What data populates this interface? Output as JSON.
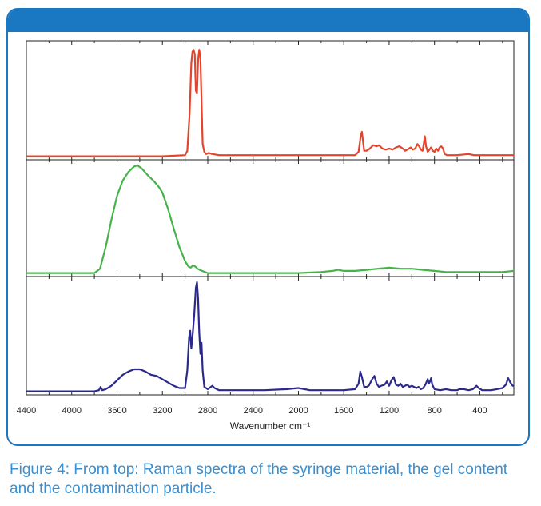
{
  "colors": {
    "frame": "#1a78c2",
    "caption": "#3a8fd1"
  },
  "caption": "Figure 4: From top: Raman spectra of the syringe material, the gel content and the contamination particle.",
  "chart_data": {
    "type": "line",
    "xlabel": "Wavenumber cm⁻¹",
    "xlim": [
      4400,
      100
    ],
    "x_ticks": [
      4400,
      4000,
      3600,
      3200,
      2800,
      2400,
      2000,
      1600,
      1200,
      800,
      400
    ],
    "x_minor_step": 200,
    "ylim": [
      0,
      1
    ],
    "grid": false,
    "panels": [
      {
        "color": "#e2452c",
        "points": [
          [
            4400,
            0.01
          ],
          [
            3200,
            0.01
          ],
          [
            3000,
            0.02
          ],
          [
            2980,
            0.06
          ],
          [
            2960,
            0.4
          ],
          [
            2945,
            0.85
          ],
          [
            2935,
            0.95
          ],
          [
            2925,
            0.97
          ],
          [
            2915,
            0.93
          ],
          [
            2905,
            0.6
          ],
          [
            2895,
            0.58
          ],
          [
            2885,
            0.88
          ],
          [
            2875,
            0.97
          ],
          [
            2865,
            0.9
          ],
          [
            2855,
            0.5
          ],
          [
            2845,
            0.12
          ],
          [
            2830,
            0.05
          ],
          [
            2815,
            0.03
          ],
          [
            2790,
            0.04
          ],
          [
            2760,
            0.03
          ],
          [
            2700,
            0.02
          ],
          [
            2000,
            0.02
          ],
          [
            1500,
            0.02
          ],
          [
            1470,
            0.05
          ],
          [
            1450,
            0.2
          ],
          [
            1440,
            0.23
          ],
          [
            1430,
            0.14
          ],
          [
            1420,
            0.06
          ],
          [
            1400,
            0.06
          ],
          [
            1370,
            0.08
          ],
          [
            1340,
            0.11
          ],
          [
            1310,
            0.1
          ],
          [
            1290,
            0.11
          ],
          [
            1260,
            0.08
          ],
          [
            1230,
            0.07
          ],
          [
            1200,
            0.08
          ],
          [
            1170,
            0.07
          ],
          [
            1140,
            0.09
          ],
          [
            1110,
            0.1
          ],
          [
            1080,
            0.08
          ],
          [
            1060,
            0.06
          ],
          [
            1040,
            0.07
          ],
          [
            1010,
            0.09
          ],
          [
            990,
            0.07
          ],
          [
            970,
            0.08
          ],
          [
            950,
            0.12
          ],
          [
            935,
            0.1
          ],
          [
            920,
            0.07
          ],
          [
            905,
            0.06
          ],
          [
            895,
            0.12
          ],
          [
            885,
            0.19
          ],
          [
            875,
            0.1
          ],
          [
            860,
            0.05
          ],
          [
            845,
            0.07
          ],
          [
            830,
            0.09
          ],
          [
            815,
            0.06
          ],
          [
            800,
            0.05
          ],
          [
            785,
            0.08
          ],
          [
            770,
            0.06
          ],
          [
            755,
            0.09
          ],
          [
            740,
            0.1
          ],
          [
            725,
            0.08
          ],
          [
            710,
            0.03
          ],
          [
            690,
            0.02
          ],
          [
            600,
            0.02
          ],
          [
            500,
            0.03
          ],
          [
            450,
            0.02
          ],
          [
            300,
            0.02
          ],
          [
            100,
            0.02
          ]
        ]
      },
      {
        "color": "#46b24a",
        "points": [
          [
            4400,
            0.01
          ],
          [
            3800,
            0.01
          ],
          [
            3750,
            0.05
          ],
          [
            3700,
            0.25
          ],
          [
            3650,
            0.5
          ],
          [
            3600,
            0.72
          ],
          [
            3550,
            0.86
          ],
          [
            3500,
            0.94
          ],
          [
            3450,
            0.99
          ],
          [
            3420,
            1.0
          ],
          [
            3380,
            0.97
          ],
          [
            3330,
            0.91
          ],
          [
            3280,
            0.86
          ],
          [
            3230,
            0.8
          ],
          [
            3200,
            0.75
          ],
          [
            3150,
            0.6
          ],
          [
            3100,
            0.42
          ],
          [
            3050,
            0.25
          ],
          [
            3000,
            0.12
          ],
          [
            2970,
            0.07
          ],
          [
            2950,
            0.06
          ],
          [
            2930,
            0.08
          ],
          [
            2910,
            0.07
          ],
          [
            2890,
            0.05
          ],
          [
            2870,
            0.04
          ],
          [
            2850,
            0.03
          ],
          [
            2800,
            0.01
          ],
          [
            2400,
            0.01
          ],
          [
            2000,
            0.01
          ],
          [
            1800,
            0.02
          ],
          [
            1700,
            0.03
          ],
          [
            1650,
            0.04
          ],
          [
            1600,
            0.03
          ],
          [
            1500,
            0.03
          ],
          [
            1400,
            0.04
          ],
          [
            1300,
            0.05
          ],
          [
            1200,
            0.06
          ],
          [
            1100,
            0.05
          ],
          [
            1000,
            0.05
          ],
          [
            900,
            0.04
          ],
          [
            800,
            0.03
          ],
          [
            700,
            0.02
          ],
          [
            600,
            0.02
          ],
          [
            400,
            0.02
          ],
          [
            200,
            0.02
          ],
          [
            100,
            0.03
          ]
        ]
      },
      {
        "color": "#2b2a8c",
        "points": [
          [
            4400,
            0.01
          ],
          [
            3800,
            0.01
          ],
          [
            3760,
            0.02
          ],
          [
            3745,
            0.05
          ],
          [
            3730,
            0.02
          ],
          [
            3700,
            0.03
          ],
          [
            3650,
            0.06
          ],
          [
            3600,
            0.11
          ],
          [
            3550,
            0.16
          ],
          [
            3500,
            0.19
          ],
          [
            3450,
            0.21
          ],
          [
            3400,
            0.21
          ],
          [
            3350,
            0.19
          ],
          [
            3300,
            0.16
          ],
          [
            3250,
            0.15
          ],
          [
            3200,
            0.12
          ],
          [
            3150,
            0.09
          ],
          [
            3100,
            0.06
          ],
          [
            3050,
            0.04
          ],
          [
            3000,
            0.04
          ],
          [
            2980,
            0.2
          ],
          [
            2965,
            0.5
          ],
          [
            2955,
            0.56
          ],
          [
            2945,
            0.4
          ],
          [
            2935,
            0.5
          ],
          [
            2920,
            0.7
          ],
          [
            2905,
            0.95
          ],
          [
            2895,
            1.0
          ],
          [
            2885,
            0.85
          ],
          [
            2875,
            0.55
          ],
          [
            2865,
            0.35
          ],
          [
            2855,
            0.45
          ],
          [
            2845,
            0.2
          ],
          [
            2830,
            0.05
          ],
          [
            2800,
            0.03
          ],
          [
            2760,
            0.06
          ],
          [
            2740,
            0.04
          ],
          [
            2700,
            0.02
          ],
          [
            2400,
            0.02
          ],
          [
            2300,
            0.02
          ],
          [
            2100,
            0.03
          ],
          [
            2000,
            0.04
          ],
          [
            1900,
            0.02
          ],
          [
            1600,
            0.02
          ],
          [
            1500,
            0.03
          ],
          [
            1470,
            0.08
          ],
          [
            1455,
            0.19
          ],
          [
            1440,
            0.14
          ],
          [
            1420,
            0.05
          ],
          [
            1400,
            0.05
          ],
          [
            1380,
            0.06
          ],
          [
            1350,
            0.12
          ],
          [
            1330,
            0.15
          ],
          [
            1310,
            0.08
          ],
          [
            1290,
            0.05
          ],
          [
            1270,
            0.06
          ],
          [
            1240,
            0.07
          ],
          [
            1220,
            0.1
          ],
          [
            1200,
            0.06
          ],
          [
            1180,
            0.11
          ],
          [
            1160,
            0.14
          ],
          [
            1140,
            0.07
          ],
          [
            1120,
            0.06
          ],
          [
            1100,
            0.08
          ],
          [
            1080,
            0.05
          ],
          [
            1060,
            0.06
          ],
          [
            1040,
            0.07
          ],
          [
            1020,
            0.05
          ],
          [
            1000,
            0.06
          ],
          [
            980,
            0.05
          ],
          [
            960,
            0.04
          ],
          [
            940,
            0.05
          ],
          [
            920,
            0.03
          ],
          [
            900,
            0.04
          ],
          [
            880,
            0.07
          ],
          [
            860,
            0.12
          ],
          [
            850,
            0.08
          ],
          [
            840,
            0.1
          ],
          [
            830,
            0.13
          ],
          [
            820,
            0.07
          ],
          [
            800,
            0.03
          ],
          [
            750,
            0.02
          ],
          [
            700,
            0.03
          ],
          [
            650,
            0.02
          ],
          [
            600,
            0.02
          ],
          [
            580,
            0.03
          ],
          [
            540,
            0.03
          ],
          [
            500,
            0.02
          ],
          [
            460,
            0.03
          ],
          [
            430,
            0.06
          ],
          [
            410,
            0.04
          ],
          [
            380,
            0.02
          ],
          [
            300,
            0.02
          ],
          [
            250,
            0.03
          ],
          [
            200,
            0.04
          ],
          [
            170,
            0.07
          ],
          [
            150,
            0.13
          ],
          [
            130,
            0.09
          ],
          [
            110,
            0.06
          ],
          [
            100,
            0.06
          ]
        ]
      }
    ]
  }
}
